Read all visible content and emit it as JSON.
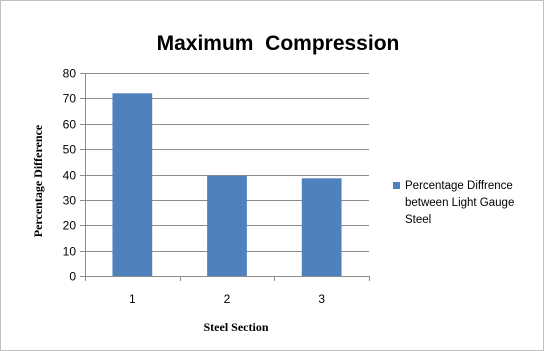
{
  "chart_data": {
    "type": "bar",
    "title": "Maximum  Compression",
    "xlabel": "Steel Section",
    "ylabel": "Percentage Difference",
    "categories": [
      "1",
      "2",
      "3"
    ],
    "series": [
      {
        "name": "Percentage Diffrence between Light Gauge Steel",
        "values": [
          72,
          39.5,
          38.5
        ],
        "color": "#4f81bd"
      }
    ],
    "ylim": [
      0,
      80
    ],
    "yticks": [
      0,
      10,
      20,
      30,
      40,
      50,
      60,
      70,
      80
    ],
    "grid": true,
    "legend_position": "right",
    "legend_lines": [
      "Percentage Diffrence",
      "between Light Gauge",
      "Steel"
    ]
  }
}
